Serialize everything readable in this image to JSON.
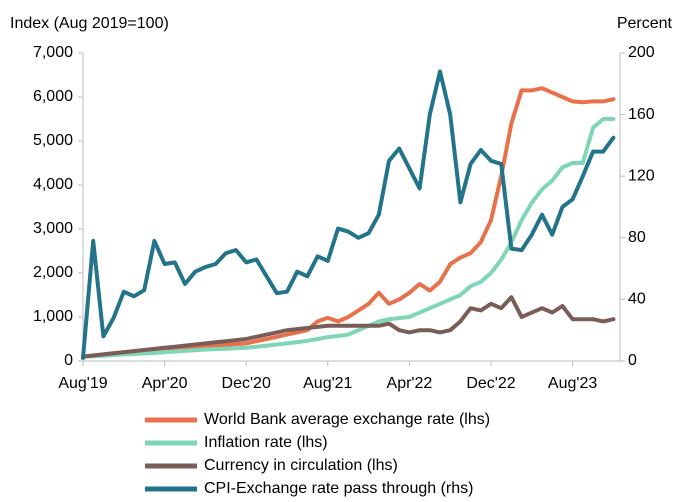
{
  "chart_data": {
    "type": "line",
    "y_axis_label": "Index (Aug 2019=100)",
    "y2_axis_label": "Percent",
    "categories": [
      "Aug'19",
      null,
      null,
      null,
      null,
      null,
      null,
      null,
      "Apr'20",
      null,
      null,
      null,
      null,
      null,
      null,
      null,
      "Dec'20",
      null,
      null,
      null,
      null,
      null,
      null,
      null,
      "Aug'21",
      null,
      null,
      null,
      null,
      null,
      null,
      null,
      "Apr'22",
      null,
      null,
      null,
      null,
      null,
      null,
      null,
      "Dec'22",
      null,
      null,
      null,
      null,
      null,
      null,
      null,
      "Aug'23",
      null,
      null,
      null,
      null
    ],
    "ylim": [
      0,
      7000
    ],
    "yticks": [
      0,
      {
        "value": 1000,
        "label": "1,000"
      },
      {
        "value": 2000,
        "label": "2,000"
      },
      {
        "value": 3000,
        "label": "3,000"
      },
      {
        "value": 4000,
        "label": "4,000"
      },
      {
        "value": 5000,
        "label": "5,000"
      },
      {
        "value": 6000,
        "label": "6,000"
      },
      {
        "value": 7000,
        "label": "7,000"
      }
    ],
    "y2lim": [
      0,
      200
    ],
    "y2ticks": [
      0,
      40,
      80,
      120,
      160,
      200
    ],
    "series": [
      {
        "name": "World Bank average exchange rate (lhs)",
        "color": "#e8704a",
        "values": [
          100,
          125,
          150,
          175,
          200,
          220,
          240,
          260,
          280,
          300,
          315,
          330,
          350,
          360,
          370,
          385,
          400,
          450,
          500,
          550,
          600,
          650,
          700,
          900,
          980,
          900,
          1000,
          1150,
          1300,
          1550,
          1300,
          1400,
          1550,
          1750,
          1600,
          1800,
          2200,
          2350,
          2450,
          2700,
          3200,
          4200,
          5400,
          6150,
          6150,
          6200,
          6100,
          6000,
          5900,
          5880,
          5900,
          5900,
          5950
        ]
      },
      {
        "name": "Inflation rate (lhs)",
        "color": "#7fd6b4",
        "values": [
          100,
          110,
          120,
          135,
          150,
          160,
          170,
          185,
          200,
          215,
          230,
          245,
          260,
          270,
          280,
          290,
          300,
          325,
          350,
          375,
          400,
          430,
          460,
          500,
          540,
          570,
          600,
          700,
          800,
          900,
          950,
          975,
          1000,
          1100,
          1200,
          1300,
          1400,
          1500,
          1700,
          1800,
          2000,
          2300,
          2700,
          3200,
          3600,
          3900,
          4100,
          4400,
          4500,
          4500,
          5300,
          5500,
          5500
        ]
      },
      {
        "name": "Currency in circulation (lhs)",
        "color": "#7a5c58",
        "values": [
          100,
          125,
          150,
          175,
          200,
          225,
          250,
          275,
          300,
          325,
          350,
          375,
          400,
          425,
          450,
          475,
          500,
          550,
          600,
          650,
          700,
          725,
          750,
          775,
          800,
          800,
          800,
          800,
          800,
          800,
          850,
          700,
          650,
          700,
          700,
          650,
          700,
          900,
          1200,
          1150,
          1300,
          1200,
          1450,
          1000,
          1100,
          1200,
          1100,
          1250,
          950,
          950,
          950,
          900,
          950
        ]
      },
      {
        "name": "CPI-Exchange rate pass through (rhs)",
        "color": "#23748a",
        "axis": "y2",
        "values": [
          2,
          78,
          16,
          28,
          45,
          42,
          46,
          78,
          63,
          64,
          50,
          58,
          61,
          63,
          70,
          72,
          64,
          66,
          55,
          44,
          45,
          58,
          55,
          68,
          65,
          86,
          84,
          80,
          83,
          95,
          130,
          138,
          125,
          112,
          160,
          188,
          160,
          103,
          128,
          137,
          130,
          128,
          73,
          72,
          82,
          95,
          82,
          100,
          105,
          120,
          136,
          136,
          145
        ]
      }
    ]
  }
}
